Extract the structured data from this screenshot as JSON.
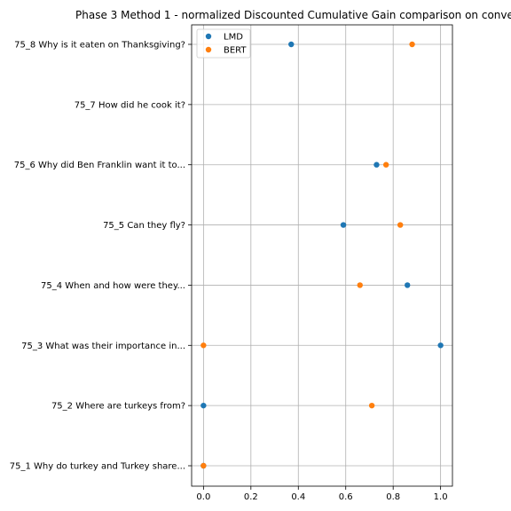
{
  "chart_data": {
    "type": "scatter",
    "title": "Phase 3 Method 1 - normalized Discounted Cumulative Gain comparison on conve",
    "xlabel": "",
    "ylabel": "",
    "xlim": [
      -0.05,
      1.05
    ],
    "xticks": [
      0.0,
      0.2,
      0.4,
      0.6,
      0.8,
      1.0
    ],
    "xtick_labels": [
      "0.0",
      "0.2",
      "0.4",
      "0.6",
      "0.8",
      "1.0"
    ],
    "categories": [
      "75_1 Why do turkey and Turkey share...",
      "75_2 Where are turkeys from?",
      "75_3 What was their importance in...",
      "75_4 When and how were they...",
      "75_5 Can they fly?",
      "75_6 Why did Ben Franklin want it to...",
      "75_7 How did he cook it?",
      "75_8 Why is it eaten on Thanksgiving?"
    ],
    "grid": true,
    "legend_position": "top-left",
    "series": [
      {
        "name": "LMD",
        "color": "#1f77b4",
        "values": [
          0.0,
          0.0,
          1.0,
          0.86,
          0.59,
          0.73,
          null,
          0.37
        ]
      },
      {
        "name": "BERT",
        "color": "#ff7f0e",
        "values": [
          0.0,
          0.71,
          0.0,
          0.66,
          0.83,
          0.77,
          null,
          0.88
        ]
      }
    ]
  }
}
